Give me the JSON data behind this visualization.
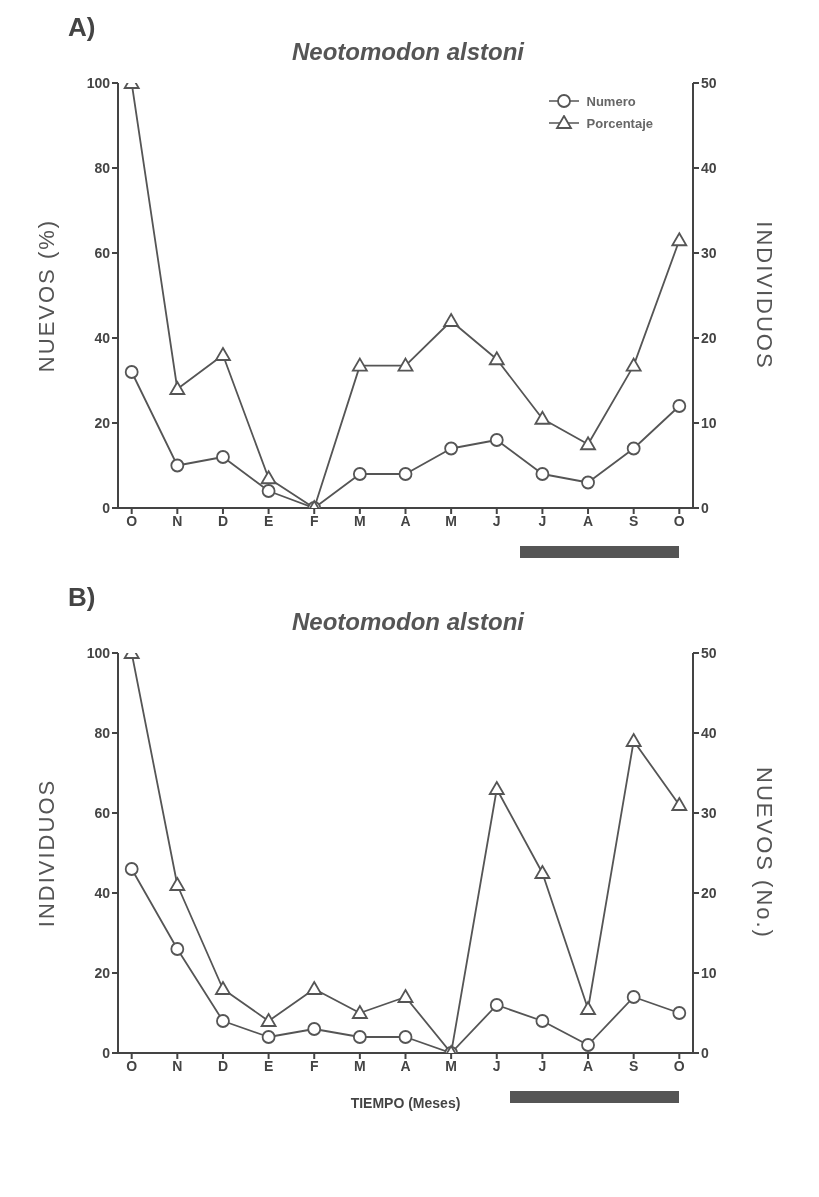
{
  "chart_data": [
    {
      "type": "line",
      "title": "Neotomodon alstoni",
      "annotations": [
        "A)"
      ],
      "ylabel": "NUEVOS (%)",
      "y2label": "INDIVIDUOS",
      "categories": [
        "O",
        "N",
        "D",
        "E",
        "F",
        "M",
        "A",
        "M",
        "J",
        "J",
        "A",
        "S",
        "O"
      ],
      "ylim": [
        0,
        100
      ],
      "yticks": [
        0,
        20,
        40,
        60,
        80,
        100
      ],
      "y2lim": [
        0,
        50
      ],
      "y2ticks": [
        0,
        10,
        20,
        30,
        40,
        50
      ],
      "legend": "top right",
      "line_style": "solid",
      "series": [
        {
          "name": "Numero",
          "color": "#555555",
          "marker": "circle",
          "axis": "y2",
          "values": [
            16,
            5,
            6,
            2,
            0,
            4,
            4,
            7,
            8,
            4,
            3,
            7,
            12
          ]
        },
        {
          "name": "Porcentaje",
          "color": "#555555",
          "marker": "triangle",
          "axis": "y",
          "values": [
            100,
            28,
            36,
            7,
            0,
            33.5,
            33.5,
            44,
            35,
            21,
            15,
            33.5,
            63
          ]
        }
      ]
    },
    {
      "type": "line",
      "title": "Neotomodon alstoni",
      "annotations": [
        "B)"
      ],
      "ylabel": "INDIVIDUOS",
      "y2label": "NUEVOS (No.)",
      "xlabel": "TIEMPO (Meses)",
      "categories": [
        "O",
        "N",
        "D",
        "E",
        "F",
        "M",
        "A",
        "M",
        "J",
        "J",
        "A",
        "S",
        "O"
      ],
      "ylim": [
        0,
        100
      ],
      "yticks": [
        0,
        20,
        40,
        60,
        80,
        100
      ],
      "y2lim": [
        0,
        50
      ],
      "y2ticks": [
        0,
        10,
        20,
        30,
        40,
        50
      ],
      "line_style": "solid",
      "series": [
        {
          "color": "#555555",
          "marker": "circle",
          "axis": "y2",
          "values": [
            23,
            13,
            4,
            2,
            3,
            2,
            2,
            0,
            6,
            4,
            1,
            7,
            5
          ]
        },
        {
          "color": "#555555",
          "marker": "triangle",
          "axis": "y",
          "values": [
            100,
            42,
            16,
            8,
            16,
            10,
            14,
            0,
            66,
            45,
            11,
            78,
            62
          ]
        }
      ]
    }
  ]
}
